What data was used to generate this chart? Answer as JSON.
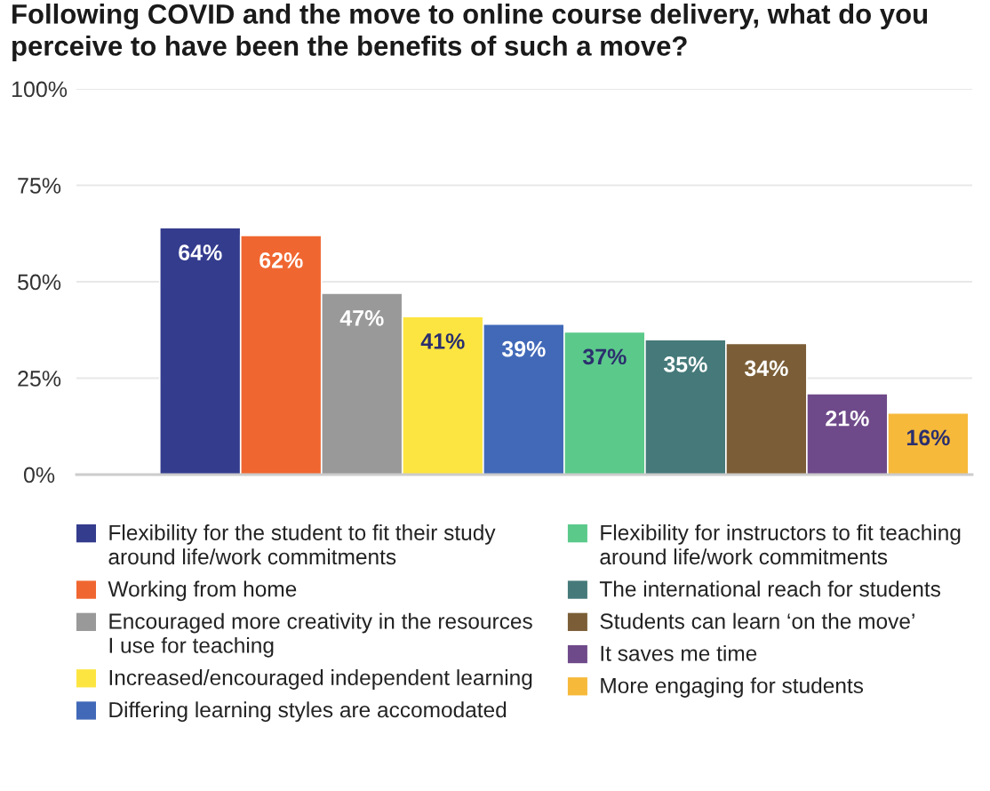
{
  "chart_data": {
    "type": "bar",
    "title": "Following COVID and the move to online course delivery, what do you perceive to have been the benefits of such a move?",
    "categories": [
      null
    ],
    "series": [
      {
        "name": "Flexibility for the student to fit their study around life/work commitments",
        "color": "#343c8e",
        "values": [
          64
        ],
        "value_labels": [
          "64%"
        ]
      },
      {
        "name": "Working from home",
        "color": "#f06630",
        "values": [
          62
        ],
        "value_labels": [
          "62%"
        ]
      },
      {
        "name": "Encouraged more creativity in the resources I use for teaching",
        "color": "#999999",
        "values": [
          47
        ],
        "value_labels": [
          "47%"
        ]
      },
      {
        "name": "Increased/encouraged independent learning",
        "color": "#fde541",
        "values": [
          41
        ],
        "value_labels": [
          "41%"
        ]
      },
      {
        "name": "Differing learning styles are accomodated",
        "color": "#4169b8",
        "values": [
          39
        ],
        "value_labels": [
          "39%"
        ]
      },
      {
        "name": "Flexibility for instructors to fit teaching around life/work commitments",
        "color": "#5bc98a",
        "values": [
          37
        ],
        "value_labels": [
          "37%"
        ]
      },
      {
        "name": "The international reach for students",
        "color": "#46797a",
        "values": [
          35
        ],
        "value_labels": [
          "35%"
        ]
      },
      {
        "name": "Students can learn ‘on the move’",
        "color": "#7b5e37",
        "values": [
          34
        ],
        "value_labels": [
          "34%"
        ]
      },
      {
        "name": "It saves me time",
        "color": "#6f4a8a",
        "values": [
          21
        ],
        "value_labels": [
          "21%"
        ]
      },
      {
        "name": "More engaging for students",
        "color": "#f6b93a",
        "values": [
          16
        ],
        "value_labels": [
          "16%"
        ]
      }
    ],
    "ylim": [
      0,
      100
    ],
    "yticks": [
      {
        "value": 0,
        "label": "0%"
      },
      {
        "value": 25,
        "label": "25%"
      },
      {
        "value": 50,
        "label": "50%"
      },
      {
        "value": 75,
        "label": "75%"
      },
      {
        "value": 100,
        "label": "100%"
      }
    ],
    "grid": "y",
    "legend": "bottom"
  }
}
